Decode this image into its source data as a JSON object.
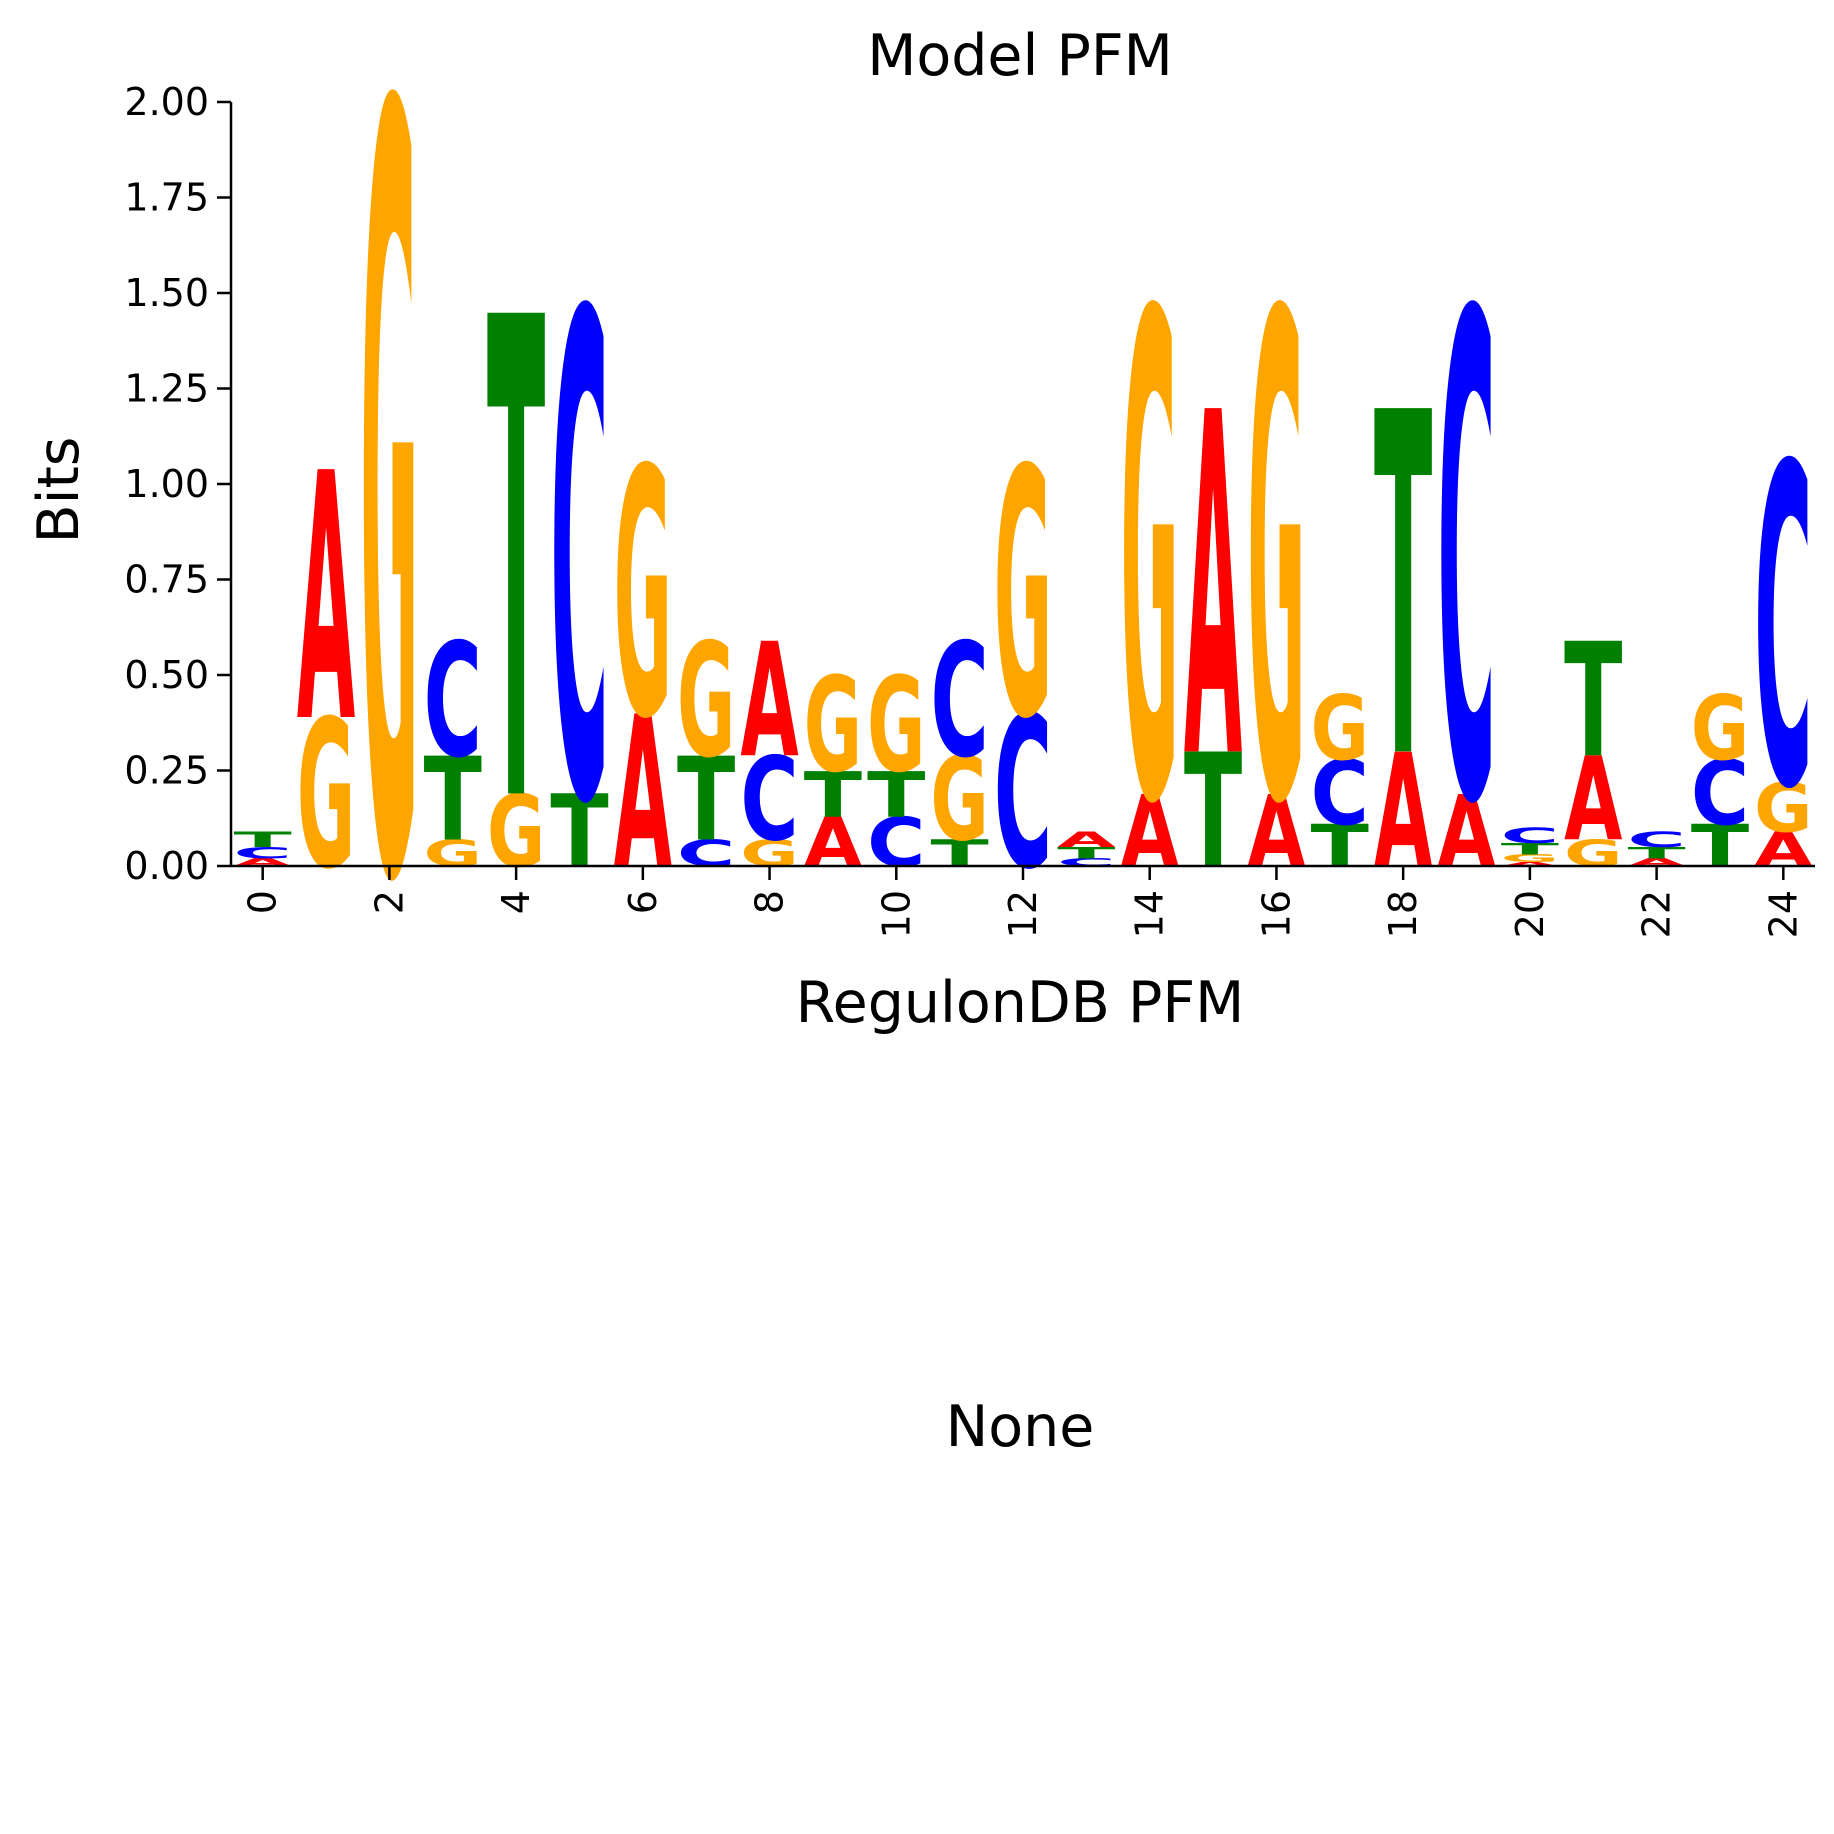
{
  "chart_data": [
    {
      "type": "sequence-logo",
      "title": "Model PFM",
      "xlabel": "RegulonDB PFM",
      "ylabel": "Bits",
      "ylim": [
        0,
        2
      ],
      "xlim": [
        -0.5,
        24.5
      ],
      "yticks": [
        "0.00",
        "0.25",
        "0.50",
        "0.75",
        "1.00",
        "1.25",
        "1.50",
        "1.75",
        "2.00"
      ],
      "xticks": [
        "0",
        "2",
        "4",
        "6",
        "8",
        "10",
        "12",
        "14",
        "16",
        "18",
        "20",
        "22",
        "24"
      ],
      "colors": {
        "A": "#ff0000",
        "C": "#0000ff",
        "G": "#ffa500",
        "T": "#008000"
      },
      "positions": [
        {
          "pos": 0,
          "letters": [
            {
              "base": "A",
              "bits": 0.02
            },
            {
              "base": "C",
              "bits": 0.03
            },
            {
              "base": "T",
              "bits": 0.04
            }
          ]
        },
        {
          "pos": 1,
          "letters": [
            {
              "base": "G",
              "bits": 0.39
            },
            {
              "base": "A",
              "bits": 0.65
            }
          ]
        },
        {
          "pos": 2,
          "letters": [
            {
              "base": "G",
              "bits": 2.0
            }
          ]
        },
        {
          "pos": 3,
          "letters": [
            {
              "base": "G",
              "bits": 0.07
            },
            {
              "base": "T",
              "bits": 0.22
            },
            {
              "base": "C",
              "bits": 0.3
            }
          ]
        },
        {
          "pos": 4,
          "letters": [
            {
              "base": "G",
              "bits": 0.19
            },
            {
              "base": "T",
              "bits": 1.26
            }
          ]
        },
        {
          "pos": 5,
          "letters": [
            {
              "base": "T",
              "bits": 0.19
            },
            {
              "base": "C",
              "bits": 1.27
            }
          ]
        },
        {
          "pos": 6,
          "letters": [
            {
              "base": "A",
              "bits": 0.4
            },
            {
              "base": "G",
              "bits": 0.65
            }
          ]
        },
        {
          "pos": 7,
          "letters": [
            {
              "base": "C",
              "bits": 0.07
            },
            {
              "base": "T",
              "bits": 0.22
            },
            {
              "base": "G",
              "bits": 0.3
            }
          ]
        },
        {
          "pos": 8,
          "letters": [
            {
              "base": "G",
              "bits": 0.07
            },
            {
              "base": "C",
              "bits": 0.22
            },
            {
              "base": "A",
              "bits": 0.3
            }
          ]
        },
        {
          "pos": 9,
          "letters": [
            {
              "base": "A",
              "bits": 0.13
            },
            {
              "base": "T",
              "bits": 0.12
            },
            {
              "base": "G",
              "bits": 0.25
            }
          ]
        },
        {
          "pos": 10,
          "letters": [
            {
              "base": "C",
              "bits": 0.13
            },
            {
              "base": "T",
              "bits": 0.12
            },
            {
              "base": "G",
              "bits": 0.25
            }
          ]
        },
        {
          "pos": 11,
          "letters": [
            {
              "base": "T",
              "bits": 0.07
            },
            {
              "base": "G",
              "bits": 0.22
            },
            {
              "base": "C",
              "bits": 0.3
            }
          ]
        },
        {
          "pos": 12,
          "letters": [
            {
              "base": "C",
              "bits": 0.4
            },
            {
              "base": "G",
              "bits": 0.65
            }
          ]
        },
        {
          "pos": 13,
          "letters": [
            {
              "base": "C",
              "bits": 0.02
            },
            {
              "base": "T",
              "bits": 0.03
            },
            {
              "base": "A",
              "bits": 0.04
            }
          ]
        },
        {
          "pos": 14,
          "letters": [
            {
              "base": "A",
              "bits": 0.19
            },
            {
              "base": "G",
              "bits": 1.27
            }
          ]
        },
        {
          "pos": 15,
          "letters": [
            {
              "base": "T",
              "bits": 0.3
            },
            {
              "base": "A",
              "bits": 0.9
            }
          ]
        },
        {
          "pos": 16,
          "letters": [
            {
              "base": "A",
              "bits": 0.19
            },
            {
              "base": "G",
              "bits": 1.27
            }
          ]
        },
        {
          "pos": 17,
          "letters": [
            {
              "base": "T",
              "bits": 0.11
            },
            {
              "base": "C",
              "bits": 0.17
            },
            {
              "base": "G",
              "bits": 0.17
            }
          ]
        },
        {
          "pos": 18,
          "letters": [
            {
              "base": "A",
              "bits": 0.3
            },
            {
              "base": "T",
              "bits": 0.9
            }
          ]
        },
        {
          "pos": 19,
          "letters": [
            {
              "base": "A",
              "bits": 0.19
            },
            {
              "base": "C",
              "bits": 1.27
            }
          ]
        },
        {
          "pos": 20,
          "letters": [
            {
              "base": "A",
              "bits": 0.01
            },
            {
              "base": "G",
              "bits": 0.02
            },
            {
              "base": "T",
              "bits": 0.03
            },
            {
              "base": "C",
              "bits": 0.04
            }
          ]
        },
        {
          "pos": 21,
          "letters": [
            {
              "base": "G",
              "bits": 0.07
            },
            {
              "base": "A",
              "bits": 0.22
            },
            {
              "base": "T",
              "bits": 0.3
            }
          ]
        },
        {
          "pos": 22,
          "letters": [
            {
              "base": "A",
              "bits": 0.02
            },
            {
              "base": "T",
              "bits": 0.03
            },
            {
              "base": "C",
              "bits": 0.04
            }
          ]
        },
        {
          "pos": 23,
          "letters": [
            {
              "base": "T",
              "bits": 0.11
            },
            {
              "base": "C",
              "bits": 0.17
            },
            {
              "base": "G",
              "bits": 0.17
            }
          ]
        },
        {
          "pos": 24,
          "letters": [
            {
              "base": "A",
              "bits": 0.09
            },
            {
              "base": "G",
              "bits": 0.13
            },
            {
              "base": "C",
              "bits": 0.84
            }
          ]
        }
      ]
    },
    {
      "type": "empty",
      "title": "None"
    }
  ]
}
